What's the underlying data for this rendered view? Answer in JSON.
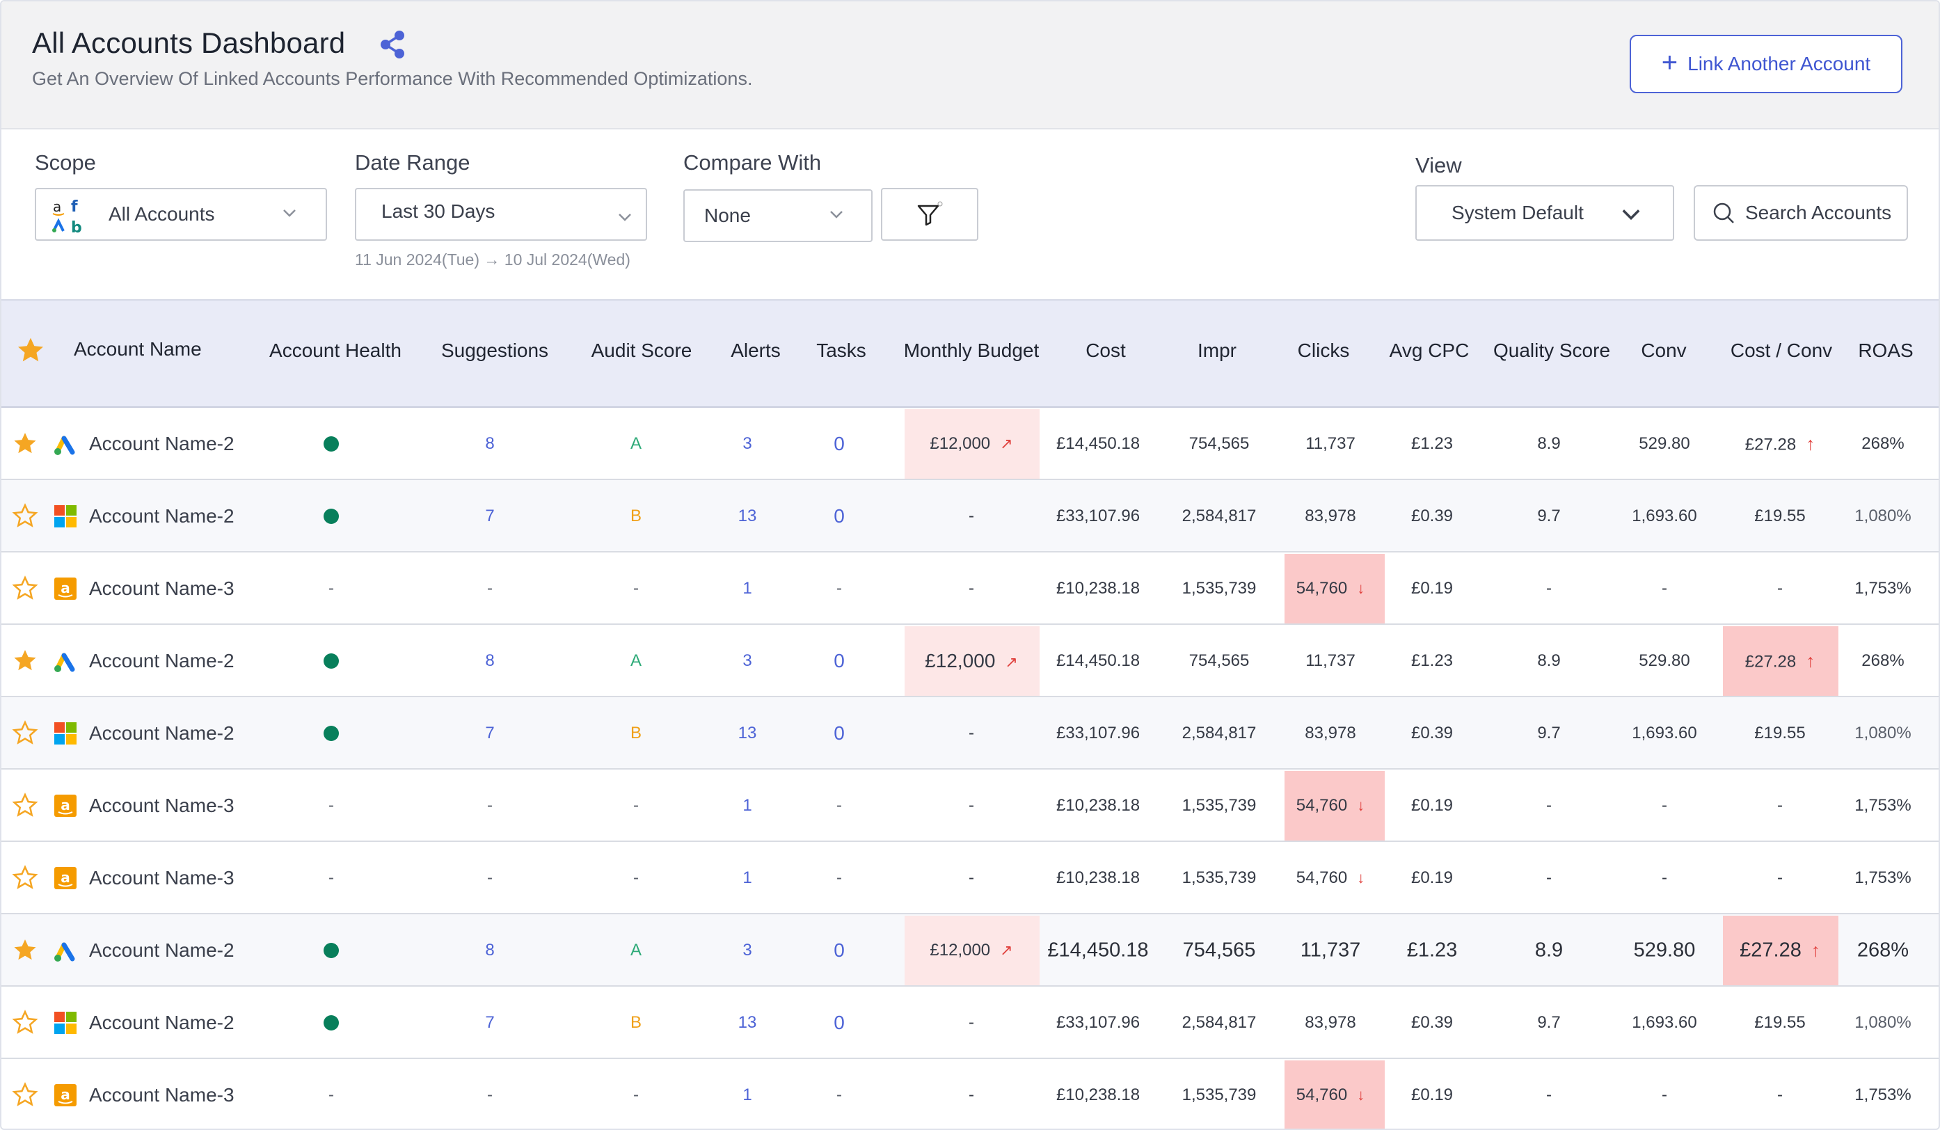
{
  "header": {
    "title": "All Accounts Dashboard",
    "subtitle": "Get An Overview Of Linked Accounts Performance  With Recommended Optimizations.",
    "link_button": "Link Another Account",
    "share_icon": "share-icon"
  },
  "filters": {
    "scope_label": "Scope",
    "scope_value": "All Accounts",
    "date_label": "Date Range",
    "date_value": "Last 30 Days",
    "date_sub": "11 Jun 2024(Tue) → 10 Jul 2024(Wed)",
    "compare_label": "Compare With",
    "compare_value": "None",
    "view_label": "View",
    "view_value": "System Default",
    "search_placeholder": "Search Accounts"
  },
  "columns": {
    "account_name": "Account Name",
    "health": "Account Health",
    "suggestions": "Suggestions",
    "audit": "Audit Score",
    "alerts": "Alerts",
    "tasks": "Tasks",
    "budget": "Monthly Budget",
    "cost": "Cost",
    "impr": "Impr",
    "clicks": "Clicks",
    "avg_cpc": "Avg CPC",
    "quality": "Quality Score",
    "conv": "Conv",
    "cost_conv": "Cost / Conv",
    "roas": "ROAS"
  },
  "colors": {
    "accent": "#4d63d6",
    "health_dot": "#087f5b",
    "grade_a": "#2eaa78",
    "grade_b": "#f0a019",
    "highlight": "#fde7e7",
    "highlight_strong": "#fbc9c9",
    "star": "#f5a623"
  },
  "rows": [
    {
      "starred": true,
      "platform": "google-ads",
      "name": "Account Name-2",
      "health": "dot",
      "suggestions": "8",
      "audit": "A",
      "alerts": "3",
      "tasks": "0",
      "budget": "£12,000",
      "budget_trend": "up",
      "cost": "£14,450.18",
      "impr": "754,565",
      "clicks": "11,737",
      "clicks_trend": "",
      "avg_cpc": "£1.23",
      "quality": "8.9",
      "conv": "529.80",
      "cost_conv": "£27.28",
      "cost_conv_trend": "up",
      "roas": "268%"
    },
    {
      "starred": false,
      "platform": "microsoft-ads",
      "name": "Account Name-2",
      "health": "dot",
      "suggestions": "7",
      "audit": "B",
      "alerts": "13",
      "tasks": "0",
      "budget": "-",
      "budget_trend": "",
      "cost": "£33,107.96",
      "impr": "2,584,817",
      "clicks": "83,978",
      "clicks_trend": "",
      "avg_cpc": "£0.39",
      "quality": "9.7",
      "conv": "1,693.60",
      "cost_conv": "£19.55",
      "cost_conv_trend": "",
      "roas": "1,080%"
    },
    {
      "starred": false,
      "platform": "amazon-ads",
      "name": "Account Name-3",
      "health": "-",
      "suggestions": "-",
      "audit": "-",
      "alerts": "1",
      "tasks": "-",
      "budget": "-",
      "budget_trend": "",
      "cost": "£10,238.18",
      "impr": "1,535,739",
      "clicks": "54,760",
      "clicks_trend": "down",
      "avg_cpc": "£0.19",
      "quality": "-",
      "conv": "-",
      "cost_conv": "-",
      "cost_conv_trend": "",
      "roas": "1,753%"
    },
    {
      "starred": true,
      "platform": "google-ads",
      "name": "Account Name-2",
      "health": "dot",
      "suggestions": "8",
      "audit": "A",
      "alerts": "3",
      "tasks": "0",
      "budget": "£12,000",
      "budget_trend": "up",
      "cost": "£14,450.18",
      "impr": "754,565",
      "clicks": "11,737",
      "clicks_trend": "",
      "avg_cpc": "£1.23",
      "quality": "8.9",
      "conv": "529.80",
      "cost_conv": "£27.28",
      "cost_conv_trend": "up",
      "roas": "268%"
    },
    {
      "starred": false,
      "platform": "microsoft-ads",
      "name": "Account Name-2",
      "health": "dot",
      "suggestions": "7",
      "audit": "B",
      "alerts": "13",
      "tasks": "0",
      "budget": "-",
      "budget_trend": "",
      "cost": "£33,107.96",
      "impr": "2,584,817",
      "clicks": "83,978",
      "clicks_trend": "",
      "avg_cpc": "£0.39",
      "quality": "9.7",
      "conv": "1,693.60",
      "cost_conv": "£19.55",
      "cost_conv_trend": "",
      "roas": "1,080%"
    },
    {
      "starred": false,
      "platform": "amazon-ads",
      "name": "Account Name-3",
      "health": "-",
      "suggestions": "-",
      "audit": "-",
      "alerts": "1",
      "tasks": "-",
      "budget": "-",
      "budget_trend": "",
      "cost": "£10,238.18",
      "impr": "1,535,739",
      "clicks": "54,760",
      "clicks_trend": "down",
      "avg_cpc": "£0.19",
      "quality": "-",
      "conv": "-",
      "cost_conv": "-",
      "cost_conv_trend": "",
      "roas": "1,753%"
    },
    {
      "starred": false,
      "platform": "amazon-ads",
      "name": "Account Name-3",
      "health": "-",
      "suggestions": "-",
      "audit": "-",
      "alerts": "1",
      "tasks": "-",
      "budget": "-",
      "budget_trend": "",
      "cost": "£10,238.18",
      "impr": "1,535,739",
      "clicks": "54,760",
      "clicks_trend": "down",
      "avg_cpc": "£0.19",
      "quality": "-",
      "conv": "-",
      "cost_conv": "-",
      "cost_conv_trend": "",
      "roas": "1,753%"
    },
    {
      "starred": true,
      "platform": "google-ads",
      "name": "Account Name-2",
      "health": "dot",
      "suggestions": "8",
      "audit": "A",
      "alerts": "3",
      "tasks": "0",
      "budget": "£12,000",
      "budget_trend": "up",
      "cost": "£14,450.18",
      "impr": "754,565",
      "clicks": "11,737",
      "clicks_trend": "",
      "avg_cpc": "£1.23",
      "quality": "8.9",
      "conv": "529.80",
      "cost_conv": "£27.28",
      "cost_conv_trend": "up",
      "roas": "268%"
    },
    {
      "starred": false,
      "platform": "microsoft-ads",
      "name": "Account Name-2",
      "health": "dot",
      "suggestions": "7",
      "audit": "B",
      "alerts": "13",
      "tasks": "0",
      "budget": "-",
      "budget_trend": "",
      "cost": "£33,107.96",
      "impr": "2,584,817",
      "clicks": "83,978",
      "clicks_trend": "",
      "avg_cpc": "£0.39",
      "quality": "9.7",
      "conv": "1,693.60",
      "cost_conv": "£19.55",
      "cost_conv_trend": "",
      "roas": "1,080%"
    },
    {
      "starred": false,
      "platform": "amazon-ads",
      "name": "Account Name-3",
      "health": "-",
      "suggestions": "-",
      "audit": "-",
      "alerts": "1",
      "tasks": "-",
      "budget": "-",
      "budget_trend": "",
      "cost": "£10,238.18",
      "impr": "1,535,739",
      "clicks": "54,760",
      "clicks_trend": "down",
      "avg_cpc": "£0.19",
      "quality": "-",
      "conv": "-",
      "cost_conv": "-",
      "cost_conv_trend": "",
      "roas": "1,753%"
    }
  ]
}
